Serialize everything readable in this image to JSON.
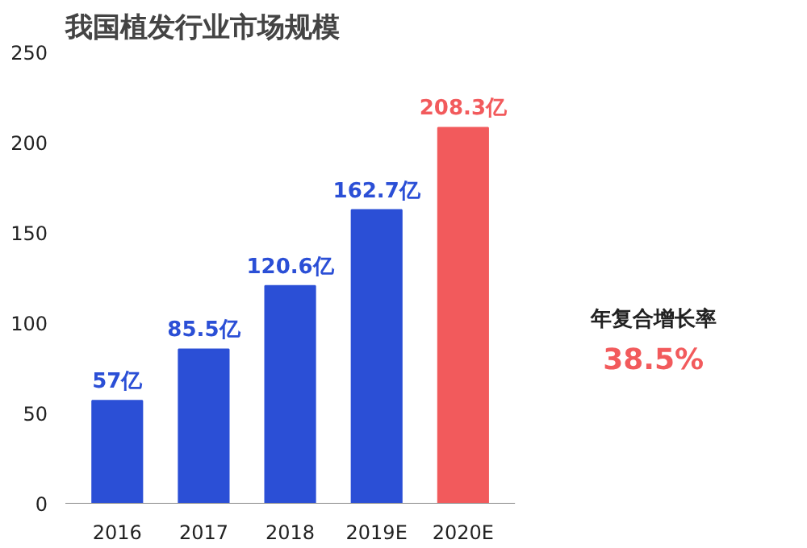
{
  "chart_data": {
    "type": "bar",
    "title": "我国植发行业市场规模",
    "categories": [
      "2016",
      "2017",
      "2018",
      "2019E",
      "2020E"
    ],
    "values": [
      57,
      85.5,
      120.6,
      162.7,
      208.3
    ],
    "colors": [
      "#2b4fd6",
      "#2b4fd6",
      "#2b4fd6",
      "#2b4fd6",
      "#f25a5c"
    ],
    "value_labels": [
      "57亿",
      "85.5亿",
      "120.6亿",
      "162.7亿",
      "208.3亿"
    ],
    "ylim": [
      0,
      250
    ],
    "yticks": [
      0,
      50,
      100,
      150,
      200,
      250
    ],
    "grid": false,
    "annotations": [
      "年复合增长率",
      "38.5%"
    ]
  }
}
